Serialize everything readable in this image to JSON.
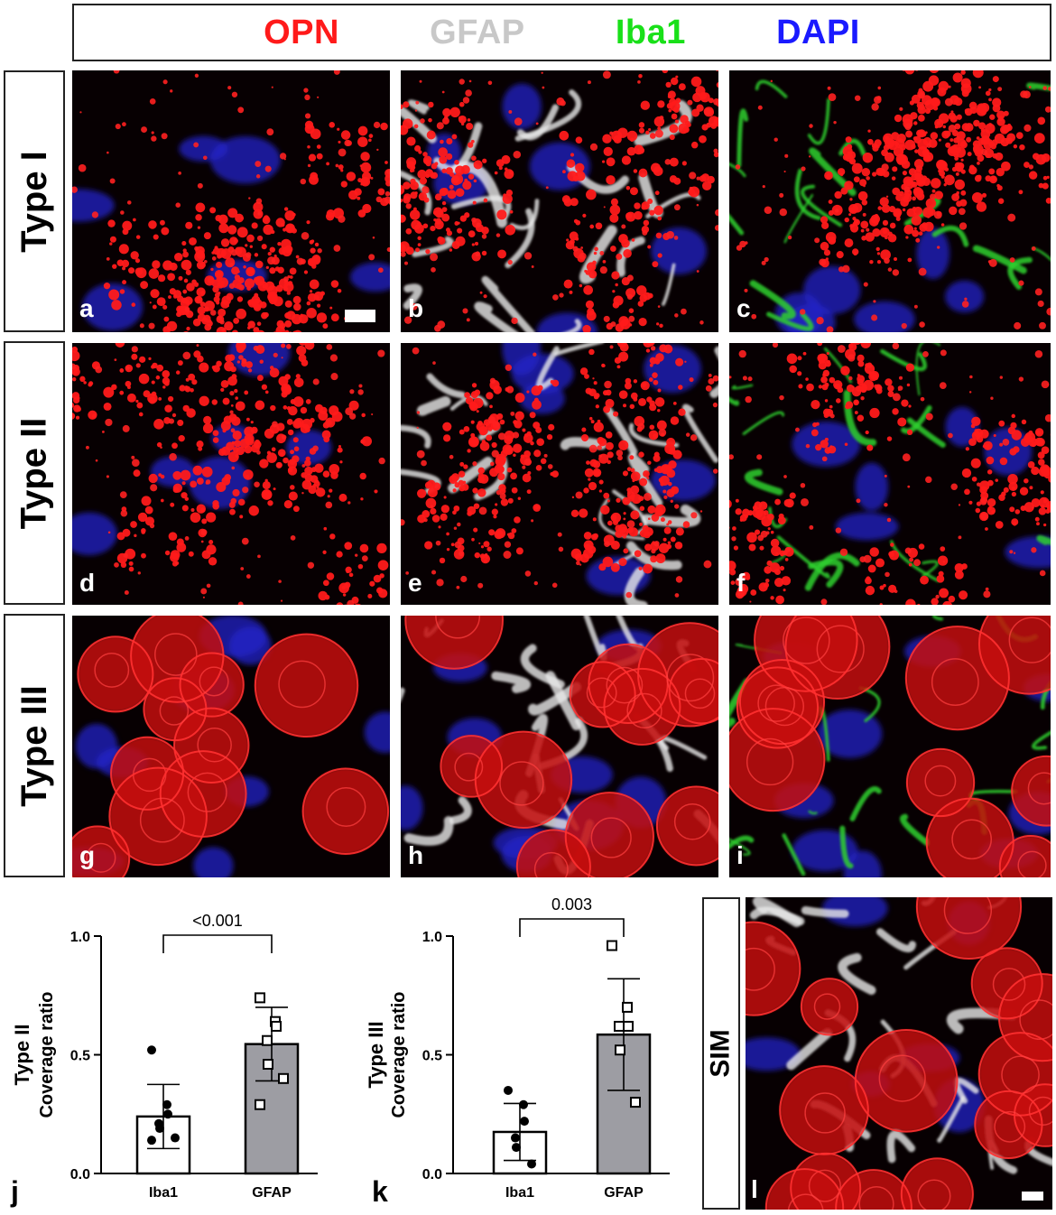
{
  "legend": [
    {
      "label": "OPN",
      "color": "#ff1a1a"
    },
    {
      "label": "GFAP",
      "color": "#c8c8c8"
    },
    {
      "label": "Iba1",
      "color": "#19e019"
    },
    {
      "label": "DAPI",
      "color": "#1a1aff"
    }
  ],
  "rows": [
    {
      "label": "Type I",
      "panels": [
        "a",
        "b",
        "c"
      ]
    },
    {
      "label": "Type II",
      "panels": [
        "d",
        "e",
        "f"
      ]
    },
    {
      "label": "Type III",
      "panels": [
        "g",
        "h",
        "i"
      ]
    }
  ],
  "sim": {
    "label": "SIM",
    "panel": "l"
  },
  "chart_data": [
    {
      "type": "bar",
      "panel": "j",
      "categories": [
        "Iba1",
        "GFAP"
      ],
      "values": [
        0.24,
        0.545
      ],
      "error": [
        0.135,
        0.155
      ],
      "points": [
        [
          0.52,
          0.29,
          0.25,
          0.21,
          0.19,
          0.15,
          0.14
        ],
        [
          0.74,
          0.64,
          0.62,
          0.56,
          0.46,
          0.4,
          0.29
        ]
      ],
      "bar_colors": [
        "#ffffff",
        "#9d9da3"
      ],
      "marker": [
        "filled-circle",
        "open-square"
      ],
      "ylabel_line1": "Type II",
      "ylabel_line2": "Coverage ratio",
      "ylim": [
        0,
        1.0
      ],
      "yticks": [
        "0.0",
        "0.5",
        "1.0"
      ],
      "annotation": "<0.001"
    },
    {
      "type": "bar",
      "panel": "k",
      "categories": [
        "Iba1",
        "GFAP"
      ],
      "values": [
        0.175,
        0.585
      ],
      "error": [
        0.12,
        0.235
      ],
      "points": [
        [
          0.35,
          0.29,
          0.22,
          0.15,
          0.11,
          0.04
        ],
        [
          0.96,
          0.7,
          0.62,
          0.62,
          0.52,
          0.3
        ]
      ],
      "bar_colors": [
        "#ffffff",
        "#9d9da3"
      ],
      "marker": [
        "filled-circle",
        "open-square"
      ],
      "ylabel_line1": "Type III",
      "ylabel_line2": "Coverage ratio",
      "ylim": [
        0,
        1.0
      ],
      "yticks": [
        "0.0",
        "0.5",
        "1.0"
      ],
      "annotation": "0.003"
    }
  ]
}
